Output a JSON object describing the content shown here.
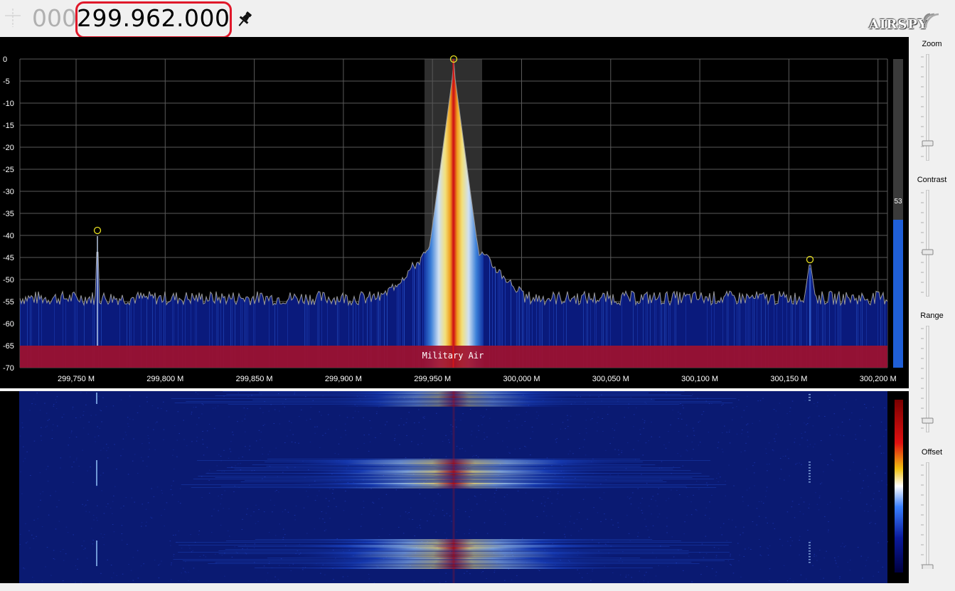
{
  "header": {
    "freq_dim": "000",
    "freq_main": "299.962.000",
    "logo": "AIRSPY"
  },
  "spectrum": {
    "db_ticks": [
      "0",
      "-5",
      "-10",
      "-15",
      "-20",
      "-25",
      "-30",
      "-35",
      "-40",
      "-45",
      "-50",
      "-55",
      "-60",
      "-65",
      "-70"
    ],
    "freq_ticks": [
      "299,750 M",
      "299,800 M",
      "299,850 M",
      "299,900 M",
      "299,950 M",
      "300,000 M",
      "300,050 M",
      "300,100 M",
      "300,150 M",
      "300,200 M"
    ],
    "band_label": "Military Air",
    "level_value": "53",
    "level_fraction": 0.53
  },
  "panel": {
    "zoom_label": "Zoom",
    "contrast_label": "Contrast",
    "range_label": "Range",
    "offset_label": "Offset"
  },
  "colors": {
    "band": "#a0102e",
    "highlight": "#e0182a",
    "level_bar": "#1f5fd8",
    "trace": "#9a9a9a",
    "spectrum_fill": "#0a1a7c"
  }
}
